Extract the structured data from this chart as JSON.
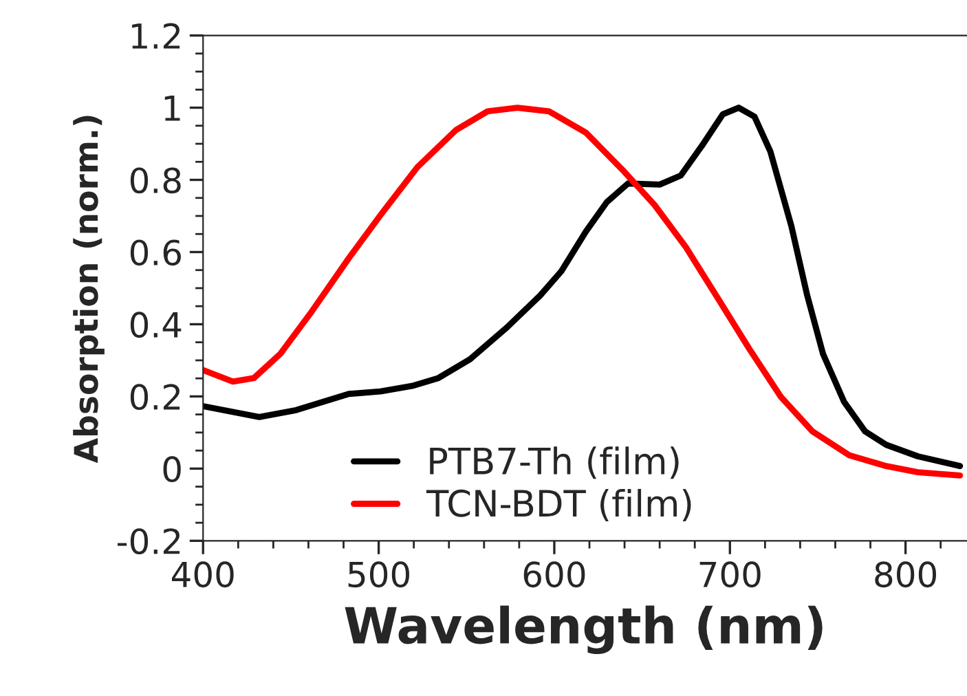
{
  "chart_data": {
    "type": "line",
    "xlabel": "Wavelength (nm)",
    "ylabel": "Absorption (norm.)",
    "xlim": [
      400,
      835
    ],
    "xticks": [
      400,
      500,
      600,
      700,
      800
    ],
    "ylim": [
      -0.2,
      1.2
    ],
    "yticks": [
      -0.2,
      0,
      0.2,
      0.4,
      0.6,
      0.8,
      1,
      1.2
    ],
    "grid": false,
    "legend": "bottom",
    "line_style": "solid",
    "marker": "none",
    "series": [
      {
        "name": "PTB7-Th (film)",
        "color": "#000000",
        "x": [
          400,
          432,
          453,
          483,
          501,
          519,
          534,
          552,
          573,
          592,
          604,
          618,
          630,
          642,
          660,
          672,
          684,
          696,
          705,
          714,
          723,
          735,
          744,
          753,
          765,
          777,
          789,
          807,
          831
        ],
        "values": [
          0.173,
          0.143,
          0.162,
          0.207,
          0.214,
          0.229,
          0.251,
          0.303,
          0.391,
          0.48,
          0.547,
          0.657,
          0.739,
          0.79,
          0.787,
          0.812,
          0.894,
          0.982,
          1.0,
          0.975,
          0.879,
          0.672,
          0.48,
          0.318,
          0.185,
          0.103,
          0.066,
          0.034,
          0.007
        ]
      },
      {
        "name": "TCN-BDT (film)",
        "color": "#ff0000",
        "x": [
          400,
          417,
          429,
          444,
          462,
          483,
          501,
          522,
          544,
          562,
          579,
          597,
          618,
          639,
          657,
          675,
          693,
          711,
          729,
          747,
          768,
          789,
          807,
          831
        ],
        "values": [
          0.273,
          0.241,
          0.251,
          0.318,
          0.436,
          0.583,
          0.702,
          0.835,
          0.938,
          0.99,
          1.0,
          0.99,
          0.931,
          0.827,
          0.731,
          0.613,
          0.473,
          0.332,
          0.199,
          0.103,
          0.037,
          0.007,
          -0.01,
          -0.019
        ]
      }
    ]
  }
}
